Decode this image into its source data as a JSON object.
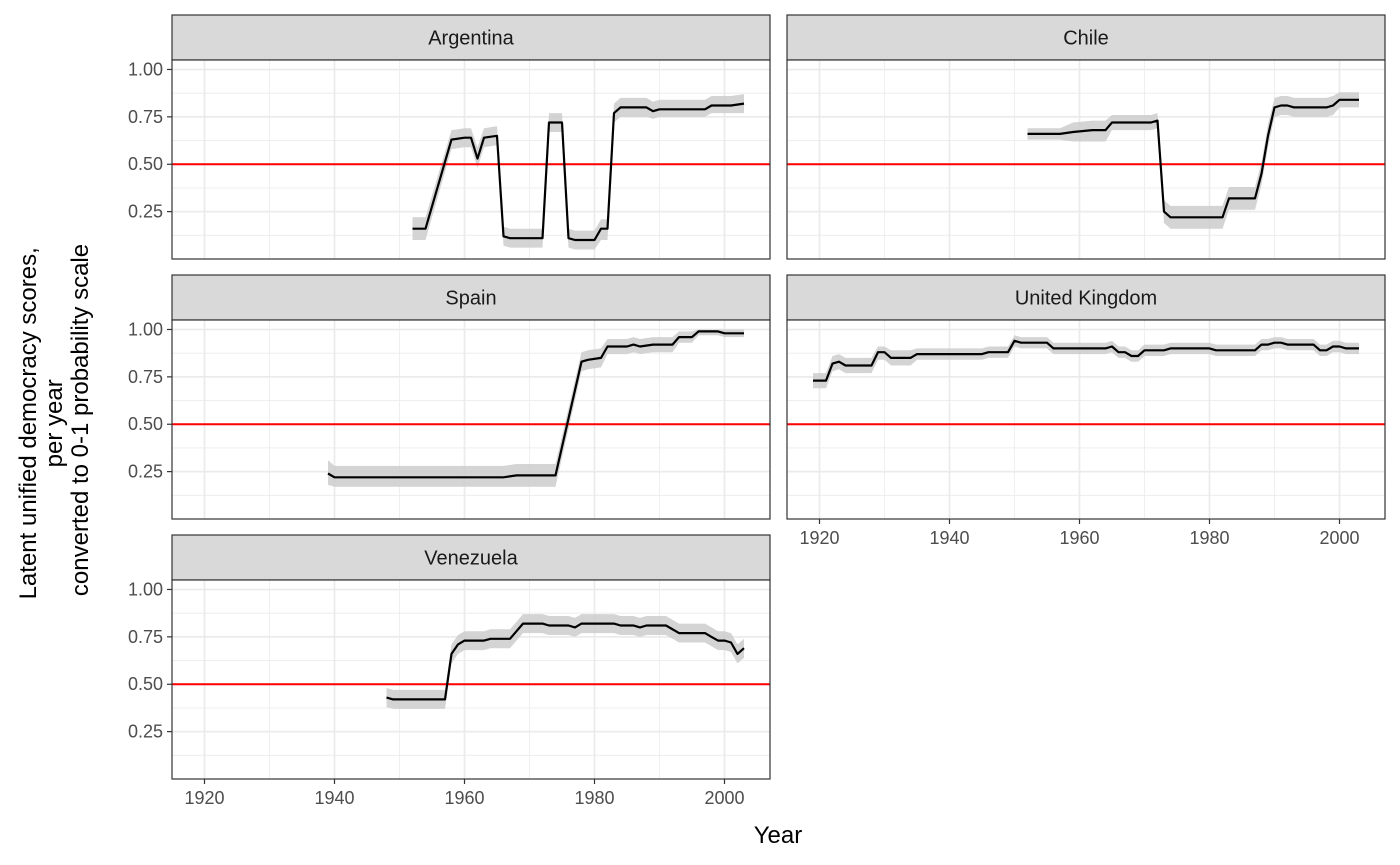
{
  "chart_data": {
    "type": "line",
    "layout": "facet-wrap",
    "xlabel": "Year",
    "ylabel_lines": [
      "Latent unified democracy scores,",
      "per year",
      "converted to 0-1 probability scale"
    ],
    "xlim": [
      1915,
      2007
    ],
    "ylim": [
      0,
      1.05
    ],
    "x_ticks": [
      1920,
      1940,
      1960,
      1980,
      2000
    ],
    "y_ticks": [
      0.25,
      0.5,
      0.75,
      1.0
    ],
    "y_tick_labels": [
      "0.25",
      "0.50",
      "0.75",
      "1.00"
    ],
    "reference_line": {
      "y": 0.5,
      "color": "#ff0000"
    },
    "colors": {
      "line": "#000000",
      "band": "#cccccc",
      "strip": "#d9d9d9",
      "grid": "#ebebeb"
    },
    "panels": [
      {
        "name": "Argentina",
        "points": [
          [
            1952,
            0.16,
            0.1,
            0.22
          ],
          [
            1954,
            0.16,
            0.1,
            0.22
          ],
          [
            1958,
            0.63,
            0.58,
            0.68
          ],
          [
            1960,
            0.64,
            0.59,
            0.69
          ],
          [
            1961,
            0.64,
            0.59,
            0.69
          ],
          [
            1962,
            0.53,
            0.48,
            0.59
          ],
          [
            1963,
            0.64,
            0.59,
            0.69
          ],
          [
            1965,
            0.65,
            0.6,
            0.7
          ],
          [
            1966,
            0.12,
            0.07,
            0.17
          ],
          [
            1967,
            0.11,
            0.06,
            0.16
          ],
          [
            1972,
            0.11,
            0.06,
            0.16
          ],
          [
            1973,
            0.72,
            0.67,
            0.77
          ],
          [
            1975,
            0.72,
            0.67,
            0.77
          ],
          [
            1976,
            0.11,
            0.06,
            0.16
          ],
          [
            1977,
            0.1,
            0.05,
            0.15
          ],
          [
            1980,
            0.1,
            0.05,
            0.15
          ],
          [
            1981,
            0.16,
            0.1,
            0.21
          ],
          [
            1982,
            0.16,
            0.1,
            0.21
          ],
          [
            1983,
            0.77,
            0.72,
            0.82
          ],
          [
            1984,
            0.8,
            0.75,
            0.85
          ],
          [
            1988,
            0.8,
            0.75,
            0.85
          ],
          [
            1989,
            0.78,
            0.74,
            0.83
          ],
          [
            1990,
            0.79,
            0.75,
            0.84
          ],
          [
            1997,
            0.79,
            0.75,
            0.84
          ],
          [
            1998,
            0.81,
            0.77,
            0.86
          ],
          [
            2001,
            0.81,
            0.77,
            0.86
          ],
          [
            2003,
            0.82,
            0.77,
            0.87
          ]
        ]
      },
      {
        "name": "Chile",
        "points": [
          [
            1952,
            0.66,
            0.63,
            0.69
          ],
          [
            1957,
            0.66,
            0.63,
            0.69
          ],
          [
            1959,
            0.67,
            0.62,
            0.72
          ],
          [
            1962,
            0.68,
            0.62,
            0.73
          ],
          [
            1964,
            0.68,
            0.62,
            0.73
          ],
          [
            1965,
            0.72,
            0.68,
            0.76
          ],
          [
            1971,
            0.72,
            0.68,
            0.76
          ],
          [
            1972,
            0.73,
            0.69,
            0.77
          ],
          [
            1973,
            0.25,
            0.19,
            0.31
          ],
          [
            1974,
            0.22,
            0.16,
            0.28
          ],
          [
            1982,
            0.22,
            0.16,
            0.28
          ],
          [
            1983,
            0.32,
            0.26,
            0.38
          ],
          [
            1987,
            0.32,
            0.26,
            0.38
          ],
          [
            1988,
            0.45,
            0.39,
            0.51
          ],
          [
            1989,
            0.65,
            0.59,
            0.71
          ],
          [
            1990,
            0.8,
            0.75,
            0.85
          ],
          [
            1991,
            0.81,
            0.76,
            0.86
          ],
          [
            1992,
            0.81,
            0.76,
            0.86
          ],
          [
            1993,
            0.8,
            0.75,
            0.85
          ],
          [
            1998,
            0.8,
            0.75,
            0.85
          ],
          [
            1999,
            0.81,
            0.76,
            0.86
          ],
          [
            2000,
            0.84,
            0.8,
            0.88
          ],
          [
            2003,
            0.84,
            0.8,
            0.88
          ]
        ]
      },
      {
        "name": "Spain",
        "points": [
          [
            1939,
            0.24,
            0.18,
            0.31
          ],
          [
            1940,
            0.22,
            0.17,
            0.28
          ],
          [
            1966,
            0.22,
            0.17,
            0.28
          ],
          [
            1968,
            0.23,
            0.17,
            0.29
          ],
          [
            1974,
            0.23,
            0.17,
            0.29
          ],
          [
            1978,
            0.83,
            0.78,
            0.88
          ],
          [
            1979,
            0.84,
            0.79,
            0.89
          ],
          [
            1981,
            0.85,
            0.8,
            0.9
          ],
          [
            1982,
            0.91,
            0.87,
            0.95
          ],
          [
            1985,
            0.91,
            0.87,
            0.95
          ],
          [
            1986,
            0.92,
            0.88,
            0.96
          ],
          [
            1987,
            0.91,
            0.87,
            0.95
          ],
          [
            1989,
            0.92,
            0.88,
            0.96
          ],
          [
            1992,
            0.92,
            0.88,
            0.96
          ],
          [
            1993,
            0.96,
            0.93,
            0.99
          ],
          [
            1995,
            0.96,
            0.93,
            0.99
          ],
          [
            1996,
            0.99,
            0.97,
            1.0
          ],
          [
            1999,
            0.99,
            0.97,
            1.0
          ],
          [
            2000,
            0.98,
            0.96,
            1.0
          ],
          [
            2003,
            0.98,
            0.96,
            1.0
          ]
        ]
      },
      {
        "name": "United Kingdom",
        "points": [
          [
            1919,
            0.73,
            0.69,
            0.77
          ],
          [
            1921,
            0.73,
            0.69,
            0.77
          ],
          [
            1922,
            0.82,
            0.78,
            0.86
          ],
          [
            1923,
            0.83,
            0.79,
            0.87
          ],
          [
            1924,
            0.81,
            0.77,
            0.85
          ],
          [
            1928,
            0.81,
            0.77,
            0.85
          ],
          [
            1929,
            0.88,
            0.84,
            0.91
          ],
          [
            1930,
            0.88,
            0.84,
            0.91
          ],
          [
            1931,
            0.85,
            0.81,
            0.89
          ],
          [
            1934,
            0.85,
            0.81,
            0.89
          ],
          [
            1935,
            0.87,
            0.84,
            0.9
          ],
          [
            1945,
            0.87,
            0.84,
            0.9
          ],
          [
            1946,
            0.88,
            0.85,
            0.91
          ],
          [
            1949,
            0.88,
            0.85,
            0.91
          ],
          [
            1950,
            0.94,
            0.91,
            0.97
          ],
          [
            1951,
            0.93,
            0.9,
            0.96
          ],
          [
            1955,
            0.93,
            0.9,
            0.96
          ],
          [
            1956,
            0.9,
            0.87,
            0.93
          ],
          [
            1964,
            0.9,
            0.87,
            0.93
          ],
          [
            1965,
            0.91,
            0.88,
            0.94
          ],
          [
            1966,
            0.88,
            0.85,
            0.91
          ],
          [
            1967,
            0.88,
            0.85,
            0.91
          ],
          [
            1968,
            0.86,
            0.83,
            0.89
          ],
          [
            1969,
            0.86,
            0.83,
            0.89
          ],
          [
            1970,
            0.89,
            0.86,
            0.92
          ],
          [
            1973,
            0.89,
            0.86,
            0.92
          ],
          [
            1974,
            0.9,
            0.87,
            0.93
          ],
          [
            1980,
            0.9,
            0.87,
            0.93
          ],
          [
            1981,
            0.89,
            0.86,
            0.92
          ],
          [
            1984,
            0.89,
            0.86,
            0.92
          ],
          [
            1985,
            0.89,
            0.86,
            0.92
          ],
          [
            1987,
            0.89,
            0.86,
            0.92
          ],
          [
            1988,
            0.92,
            0.89,
            0.95
          ],
          [
            1989,
            0.92,
            0.89,
            0.95
          ],
          [
            1990,
            0.93,
            0.9,
            0.96
          ],
          [
            1991,
            0.93,
            0.9,
            0.96
          ],
          [
            1992,
            0.92,
            0.89,
            0.95
          ],
          [
            1996,
            0.92,
            0.89,
            0.95
          ],
          [
            1997,
            0.89,
            0.86,
            0.92
          ],
          [
            1998,
            0.89,
            0.86,
            0.92
          ],
          [
            1999,
            0.91,
            0.88,
            0.94
          ],
          [
            2000,
            0.91,
            0.88,
            0.94
          ],
          [
            2001,
            0.9,
            0.87,
            0.93
          ],
          [
            2003,
            0.9,
            0.87,
            0.93
          ]
        ]
      },
      {
        "name": "Venezuela",
        "points": [
          [
            1948,
            0.43,
            0.38,
            0.48
          ],
          [
            1949,
            0.42,
            0.37,
            0.47
          ],
          [
            1957,
            0.42,
            0.37,
            0.47
          ],
          [
            1958,
            0.66,
            0.61,
            0.71
          ],
          [
            1959,
            0.71,
            0.66,
            0.76
          ],
          [
            1960,
            0.73,
            0.68,
            0.78
          ],
          [
            1963,
            0.73,
            0.68,
            0.78
          ],
          [
            1964,
            0.74,
            0.69,
            0.79
          ],
          [
            1967,
            0.74,
            0.69,
            0.79
          ],
          [
            1968,
            0.78,
            0.73,
            0.83
          ],
          [
            1969,
            0.82,
            0.77,
            0.87
          ],
          [
            1972,
            0.82,
            0.77,
            0.87
          ],
          [
            1973,
            0.81,
            0.76,
            0.86
          ],
          [
            1976,
            0.81,
            0.76,
            0.86
          ],
          [
            1977,
            0.8,
            0.75,
            0.85
          ],
          [
            1978,
            0.82,
            0.77,
            0.87
          ],
          [
            1983,
            0.82,
            0.77,
            0.87
          ],
          [
            1984,
            0.81,
            0.76,
            0.86
          ],
          [
            1986,
            0.81,
            0.76,
            0.86
          ],
          [
            1987,
            0.8,
            0.75,
            0.85
          ],
          [
            1988,
            0.81,
            0.76,
            0.86
          ],
          [
            1991,
            0.81,
            0.76,
            0.86
          ],
          [
            1993,
            0.77,
            0.72,
            0.82
          ],
          [
            1997,
            0.77,
            0.72,
            0.82
          ],
          [
            1998,
            0.75,
            0.7,
            0.8
          ],
          [
            1999,
            0.73,
            0.68,
            0.78
          ],
          [
            2000,
            0.73,
            0.68,
            0.78
          ],
          [
            2001,
            0.72,
            0.67,
            0.77
          ],
          [
            2002,
            0.66,
            0.61,
            0.71
          ],
          [
            2003,
            0.69,
            0.64,
            0.74
          ]
        ]
      }
    ]
  }
}
